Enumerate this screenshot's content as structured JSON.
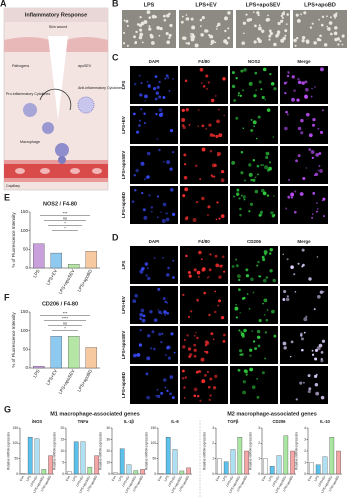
{
  "panels": {
    "A": {
      "letter": "A",
      "title": "Inflammatory Response",
      "labels": [
        "Skin wound",
        "Pathogens",
        "apoSEV",
        "Anti-inflammatory Cytokines",
        "Pro-inflammatory Cytokines",
        "Macrophage",
        "Capillary"
      ]
    },
    "B": {
      "letter": "B",
      "labels": [
        "LPS",
        "LPS+EV",
        "LPS+apoSEV",
        "LPS+apoBD"
      ]
    },
    "C": {
      "letter": "C",
      "columns": [
        "DAPI",
        "F4/80",
        "NOS2",
        "Merge"
      ],
      "rows": [
        "LPS",
        "LPS+EV",
        "LPS+apoSEV",
        "LPS+apoBD"
      ]
    },
    "D": {
      "letter": "D",
      "columns": [
        "DAPI",
        "F4/80",
        "CD206",
        "Merge"
      ],
      "rows": [
        "LPS",
        "LPS+EV",
        "LPS+apoSEV",
        "LPS+apoBD"
      ]
    },
    "E": {
      "letter": "E",
      "type": "bar",
      "title": "NOS2 / F4-80",
      "y_label": "% of Fluorescence Intensity",
      "categories": [
        "LPS",
        "LPS+EV",
        "LPS+apoSEV",
        "LPS+apoBD"
      ],
      "values": [
        65,
        40,
        10,
        45
      ],
      "colors": [
        "#c9a0dc",
        "#8ec9f0",
        "#b5e6a5",
        "#f7c9a0"
      ],
      "ylim": [
        0,
        150
      ],
      "yticks": [
        0,
        50,
        100,
        150
      ],
      "significance": [
        "***",
        "ns",
        "*",
        "*"
      ]
    },
    "F": {
      "letter": "F",
      "type": "bar",
      "title": "CD206 / F4-80",
      "y_label": "% of Fluorescence Intensity",
      "categories": [
        "LPS",
        "LPS+EV",
        "LPS+apoSEV",
        "LPS+apoBD"
      ],
      "values": [
        5,
        85,
        85,
        55
      ],
      "colors": [
        "#c9a0dc",
        "#8ec9f0",
        "#b5e6a5",
        "#f7c9a0"
      ],
      "ylim": [
        0,
        150
      ],
      "yticks": [
        0,
        50,
        100,
        150
      ],
      "significance": [
        "***",
        "****",
        "ns",
        "*"
      ]
    },
    "G": {
      "letter": "G",
      "groups": [
        "M1 macrophage-associated genes",
        "M2 macrophage-associated genes"
      ],
      "y_label": "Relative mRNA expression",
      "categories": [
        "Con",
        "LPS",
        "LPS+EV",
        "LPS+apoSEV",
        "LPS+apoBD"
      ],
      "colors": [
        "#ffffff",
        "#5bc0eb",
        "#aedff2",
        "#a8e6a1",
        "#f4a6a6"
      ],
      "charts": [
        {
          "title": "iNOS",
          "values": [
            1,
            120,
            115,
            15,
            60
          ],
          "ylim": [
            0,
            150
          ],
          "yticks": [
            0,
            50,
            100,
            150
          ]
        },
        {
          "title": "TNFα",
          "values": [
            1,
            14,
            14,
            3,
            8
          ],
          "ylim": [
            0,
            20
          ],
          "yticks": [
            0,
            5,
            10,
            15,
            20
          ]
        },
        {
          "title": "IL-1β",
          "values": [
            1,
            22,
            8,
            3,
            4
          ],
          "ylim": [
            0,
            40
          ],
          "yticks": [
            0,
            10,
            20,
            30,
            40
          ]
        },
        {
          "title": "IL-6",
          "values": [
            1,
            120,
            80,
            10,
            20
          ],
          "ylim": [
            0,
            150
          ],
          "yticks": [
            0,
            50,
            100,
            150
          ]
        },
        {
          "title": "TGFβ",
          "values": [
            1,
            0.8,
            1.6,
            2.4,
            1.5
          ],
          "ylim": [
            0,
            3
          ],
          "yticks": [
            0,
            1,
            2,
            3
          ]
        },
        {
          "title": "CD206",
          "values": [
            1,
            0.5,
            1.2,
            2.5,
            1.5
          ],
          "ylim": [
            0,
            3
          ],
          "yticks": [
            0,
            1,
            2,
            3
          ]
        },
        {
          "title": "IL-10",
          "values": [
            1,
            0.8,
            1.5,
            3.2,
            2
          ],
          "ylim": [
            0,
            4
          ],
          "yticks": [
            0,
            1,
            2,
            3,
            4
          ]
        }
      ]
    }
  }
}
